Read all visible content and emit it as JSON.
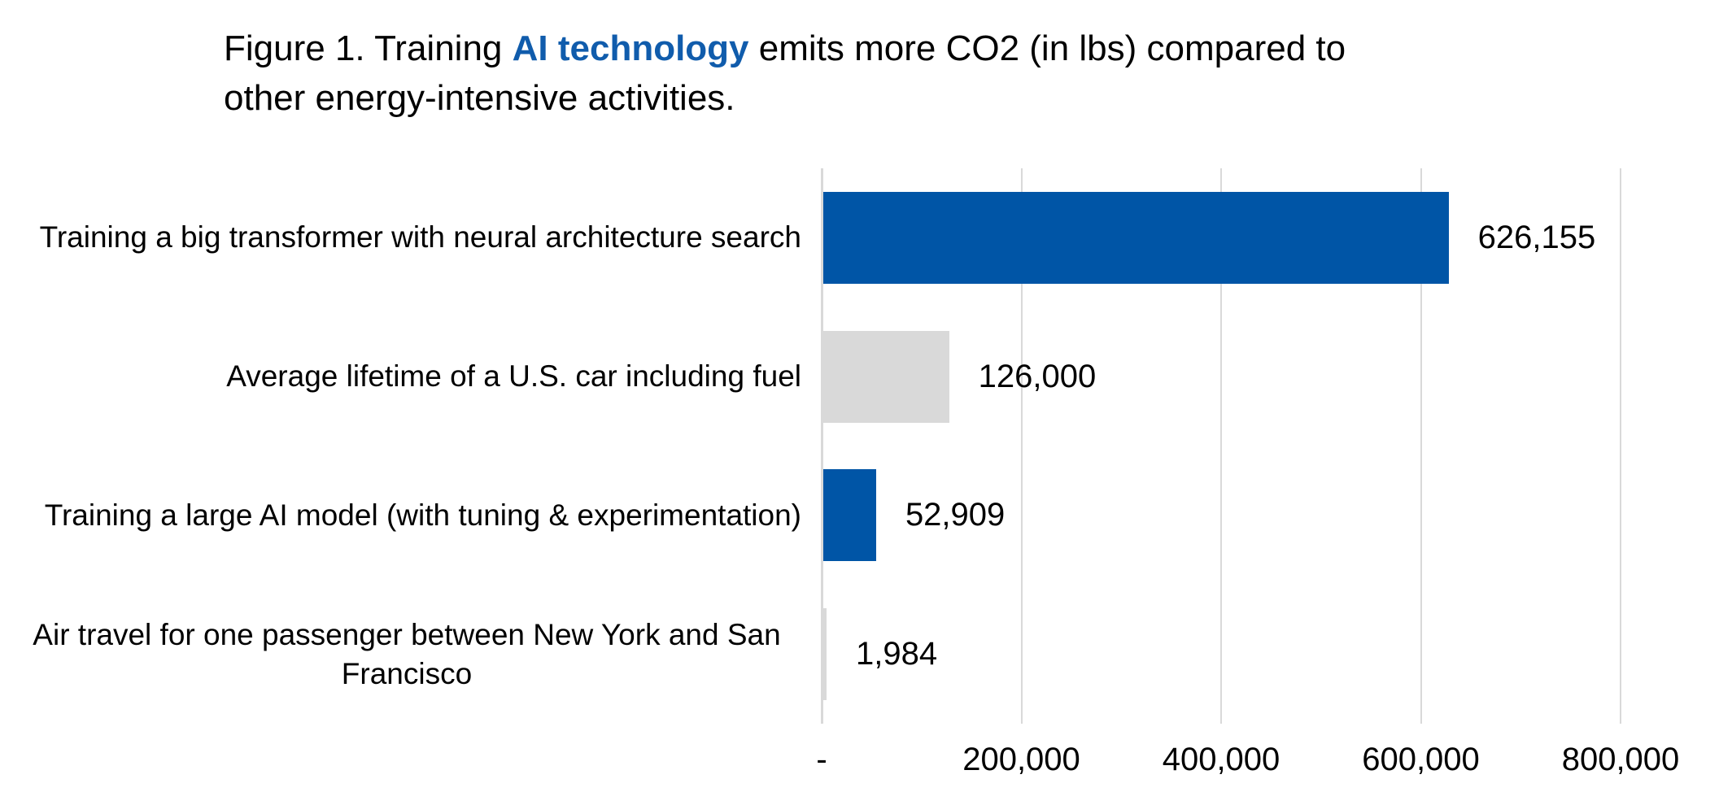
{
  "title": {
    "part1": "Figure 1. Training ",
    "highlight": "AI technology",
    "part2": " emits more CO2 (in lbs) compared to",
    "line2": "other energy-intensive activities."
  },
  "colors": {
    "accent_blue": "#0055a6",
    "title_blue": "#105cac",
    "bar_gray": "#d9d9d9",
    "gridline_gray": "#d9d9d9",
    "text": "#000000"
  },
  "chart_data": {
    "type": "bar",
    "orientation": "horizontal",
    "title": "Figure 1. Training AI technology emits more CO2 (in lbs) compared to other energy-intensive activities.",
    "unit": "lbs CO2",
    "categories": [
      "Training a big transformer with neural architecture search",
      "Average lifetime of a U.S. car including fuel",
      "Training a large AI model (with tuning & experimentation)",
      "Air travel for one passenger between New York and San Francisco"
    ],
    "values": [
      626155,
      126000,
      52909,
      1984
    ],
    "value_labels": [
      "626,155",
      "126,000",
      "52,909",
      "1,984"
    ],
    "bar_colors": [
      "#0055a6",
      "#d9d9d9",
      "#0055a6",
      "#d9d9d9"
    ],
    "x_ticks": [
      "-",
      "200,000",
      "400,000",
      "600,000",
      "800,000"
    ],
    "x_tick_values": [
      0,
      200000,
      400000,
      600000,
      800000
    ],
    "xlim": [
      0,
      800000
    ],
    "grid": true,
    "legend": "none"
  }
}
